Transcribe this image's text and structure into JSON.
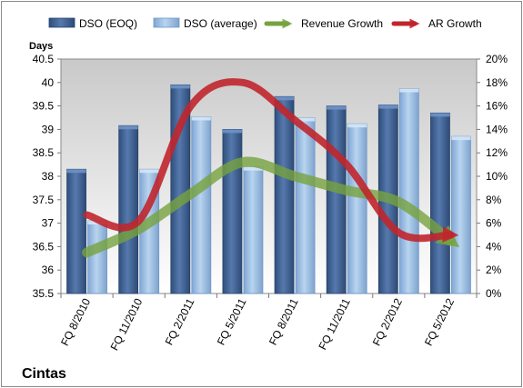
{
  "chart_data": {
    "type": "bar",
    "title": "",
    "company": "Cintas",
    "ylabel": "Days",
    "categories": [
      "FQ 8/2010",
      "FQ 11/2010",
      "FQ 2/2011",
      "FQ 5/2011",
      "FQ 8/2011",
      "FQ 11/2011",
      "FQ 2/2012",
      "FQ 5/2012"
    ],
    "ylim": [
      35.5,
      40.5
    ],
    "yticks": [
      "35.5",
      "36",
      "36.5",
      "37",
      "37.5",
      "38",
      "38.5",
      "39",
      "39.5",
      "40",
      "40.5"
    ],
    "y2lim": [
      0,
      20
    ],
    "y2ticks": [
      "0%",
      "2%",
      "4%",
      "6%",
      "8%",
      "10%",
      "12%",
      "14%",
      "16%",
      "18%",
      "20%"
    ],
    "legend_position": "top",
    "grid": false,
    "series": [
      {
        "name": "DSO (EOQ)",
        "kind": "bar",
        "axis": "left",
        "color": "#4a6fa5",
        "values": [
          38.15,
          39.08,
          39.95,
          39.0,
          39.7,
          39.5,
          39.52,
          39.35
        ]
      },
      {
        "name": "DSO (average)",
        "kind": "bar",
        "axis": "left",
        "color": "#9dc3e6",
        "values": [
          37.05,
          38.15,
          39.27,
          38.2,
          39.25,
          39.12,
          39.87,
          38.85
        ]
      },
      {
        "name": "Revenue Growth",
        "kind": "line",
        "axis": "right",
        "color": "#77a33f",
        "values": [
          3.5,
          5.5,
          8.5,
          11.2,
          10.0,
          8.8,
          7.8,
          4.5
        ]
      },
      {
        "name": "AR Growth",
        "kind": "line",
        "axis": "right",
        "color": "#c0262d",
        "values": [
          6.7,
          6.2,
          16.0,
          18.0,
          14.8,
          11.0,
          5.2,
          5.0
        ]
      }
    ]
  }
}
